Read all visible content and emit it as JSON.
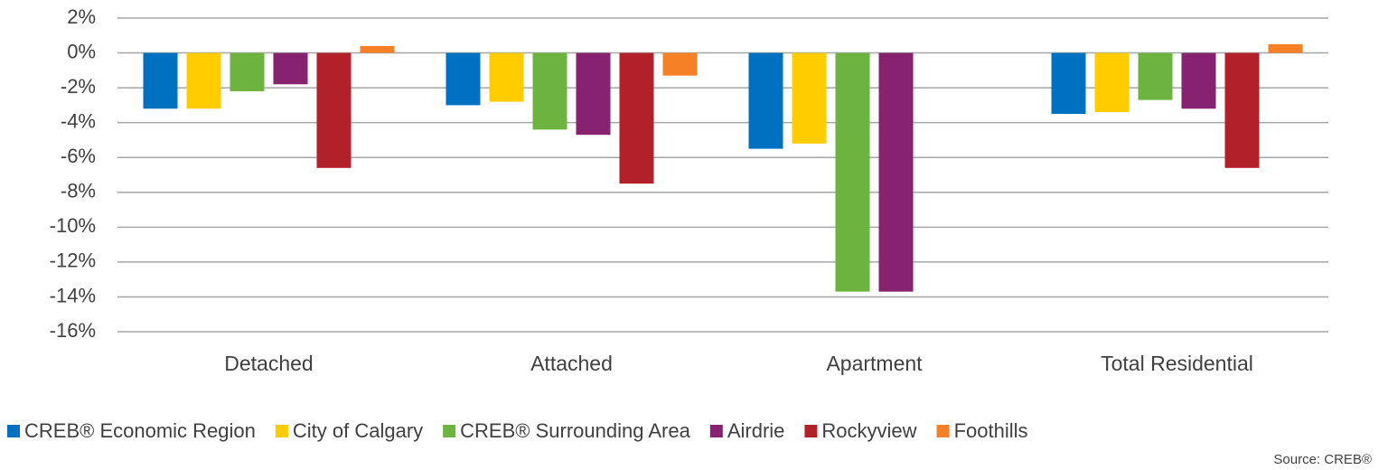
{
  "chart_data": {
    "type": "bar",
    "categories": [
      "Detached",
      "Attached",
      "Apartment",
      "Total Residential"
    ],
    "series": [
      {
        "name": "CREB® Economic Region",
        "color": "#0070c0",
        "values": [
          -3.2,
          -3.0,
          -5.5,
          -3.5
        ]
      },
      {
        "name": "City of Calgary",
        "color": "#ffcc00",
        "values": [
          -3.2,
          -2.8,
          -5.2,
          -3.4
        ]
      },
      {
        "name": "CREB® Surrounding Area",
        "color": "#6db33f",
        "values": [
          -2.2,
          -4.4,
          -13.7,
          -2.7
        ]
      },
      {
        "name": "Airdrie",
        "color": "#86226f",
        "values": [
          -1.8,
          -4.7,
          -13.7,
          -3.2
        ]
      },
      {
        "name": "Rockyview",
        "color": "#b2212a",
        "values": [
          -6.6,
          -7.5,
          null,
          -6.6
        ]
      },
      {
        "name": "Foothills",
        "color": "#f58025",
        "values": [
          0.4,
          -1.3,
          null,
          0.5
        ]
      }
    ],
    "ylim": [
      -16,
      2
    ],
    "yticks": [
      {
        "value": 2,
        "label": "2%"
      },
      {
        "value": 0,
        "label": "0%"
      },
      {
        "value": -2,
        "label": "-2%"
      },
      {
        "value": -4,
        "label": "-4%"
      },
      {
        "value": -6,
        "label": "-6%"
      },
      {
        "value": -8,
        "label": "-8%"
      },
      {
        "value": -10,
        "label": "-10%"
      },
      {
        "value": -12,
        "label": "-12%"
      },
      {
        "value": -14,
        "label": "-14%"
      },
      {
        "value": -16,
        "label": "-16%"
      }
    ],
    "grid": true,
    "source": "Source: CREB®"
  }
}
